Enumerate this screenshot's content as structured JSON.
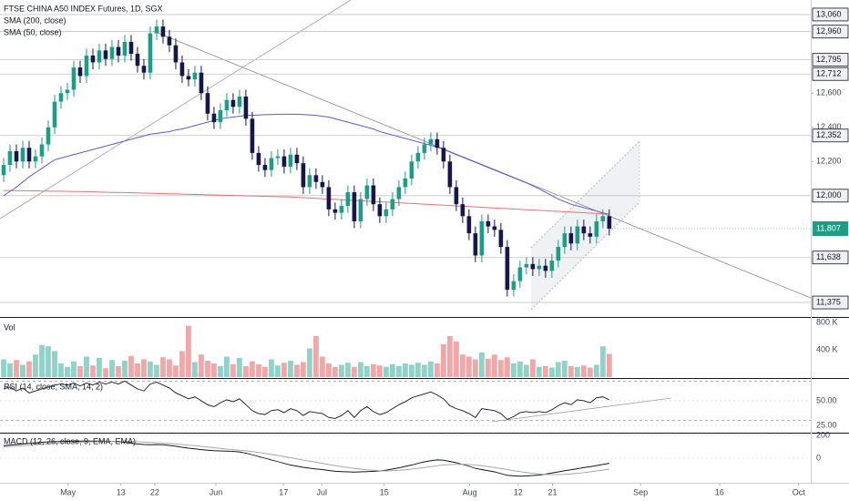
{
  "chart_data": {
    "type": "candlestick",
    "title": "FTSE CHINA A50 INDEX Futures, 1D, SGX",
    "up_color": "#1b9e83",
    "down_color": "#16164a",
    "xlim": [
      -0.57,
      126.6
    ],
    "xticks": [
      {
        "value": 10.1,
        "label": "May"
      },
      {
        "value": 18.4,
        "label": "13"
      },
      {
        "value": 23.7,
        "label": "22"
      },
      {
        "value": 33.3,
        "label": "Jun"
      },
      {
        "value": 43.9,
        "label": "17"
      },
      {
        "value": 49.9,
        "label": "Jul"
      },
      {
        "value": 59.7,
        "label": "15"
      },
      {
        "value": 73.1,
        "label": "Aug"
      },
      {
        "value": 80.7,
        "label": "12"
      },
      {
        "value": 86.1,
        "label": "21"
      },
      {
        "value": 99.9,
        "label": "Sep"
      },
      {
        "value": 112.3,
        "label": "16"
      },
      {
        "value": 124.7,
        "label": "Oct"
      }
    ],
    "ylim": [
      11290,
      13145
    ],
    "yticks": [
      {
        "value": 12600,
        "label": "12,600"
      },
      {
        "value": 12400,
        "label": "12,400"
      },
      {
        "value": 12200,
        "label": "12,200"
      }
    ],
    "levels": [
      {
        "value": 13060,
        "label": "13,060"
      },
      {
        "value": 12960,
        "label": "12,960"
      },
      {
        "value": 12795,
        "label": "12,795"
      },
      {
        "value": 12712,
        "label": "12,712"
      },
      {
        "value": 12352,
        "label": "12,352"
      },
      {
        "value": 12000,
        "label": "12,000"
      },
      {
        "value": 11638,
        "label": "11,638"
      },
      {
        "value": 11375,
        "label": "11,375"
      }
    ],
    "last_price": {
      "value": 11807,
      "label": "11,807"
    },
    "open": [
      12120,
      12180,
      12260,
      12200,
      12280,
      12200,
      12230,
      12300,
      12400,
      12550,
      12600,
      12620,
      12750,
      12700,
      12820,
      12780,
      12850,
      12800,
      12870,
      12820,
      12900,
      12830,
      12760,
      12720,
      12950,
      12990,
      12930,
      12880,
      12780,
      12700,
      12680,
      12720,
      12600,
      12480,
      12430,
      12500,
      12560,
      12520,
      12580,
      12450,
      12250,
      12180,
      12150,
      12220,
      12230,
      12170,
      12240,
      12190,
      12050,
      12120,
      12080,
      12050,
      11920,
      11900,
      11940,
      12020,
      11850,
      11980,
      12060,
      11950,
      11880,
      11920,
      11980,
      12050,
      12100,
      12200,
      12250,
      12300,
      12330,
      12280,
      12200,
      12050,
      11950,
      11880,
      11780,
      11650,
      11850,
      11820,
      11800,
      11700,
      11450,
      11500,
      11580,
      11600,
      11570,
      11590,
      11560,
      11620,
      11700,
      11780,
      11720,
      11820,
      11780,
      11760,
      11850,
      11880
    ],
    "high": [
      12220,
      12300,
      12300,
      12320,
      12320,
      12270,
      12340,
      12440,
      12590,
      12640,
      12660,
      12790,
      12790,
      12860,
      12860,
      12890,
      12890,
      12910,
      12910,
      12940,
      12940,
      12870,
      12800,
      12990,
      13030,
      13030,
      12970,
      12920,
      12820,
      12740,
      12760,
      12760,
      12640,
      12520,
      12540,
      12600,
      12600,
      12620,
      12620,
      12490,
      12290,
      12220,
      12260,
      12270,
      12270,
      12280,
      12280,
      12230,
      12160,
      12160,
      12120,
      12090,
      11960,
      11980,
      12060,
      12060,
      12020,
      12100,
      12100,
      11990,
      11960,
      12020,
      12090,
      12140,
      12240,
      12290,
      12340,
      12370,
      12370,
      12320,
      12240,
      12090,
      11990,
      11920,
      11820,
      11890,
      11890,
      11860,
      11840,
      11740,
      11540,
      11620,
      11640,
      11640,
      11630,
      11630,
      11660,
      11740,
      11820,
      11820,
      11860,
      11860,
      11820,
      11890,
      11920,
      11920
    ],
    "low": [
      12080,
      12140,
      12160,
      12160,
      12160,
      12160,
      12190,
      12260,
      12360,
      12510,
      12560,
      12580,
      12660,
      12660,
      12740,
      12740,
      12760,
      12760,
      12780,
      12780,
      12790,
      12720,
      12680,
      12680,
      12910,
      12890,
      12840,
      12740,
      12660,
      12640,
      12640,
      12560,
      12440,
      12390,
      12390,
      12460,
      12480,
      12480,
      12410,
      12210,
      12140,
      12110,
      12110,
      12180,
      12130,
      12130,
      12150,
      12010,
      12010,
      12040,
      12010,
      11880,
      11860,
      11860,
      11900,
      11810,
      11810,
      11940,
      11910,
      11840,
      11840,
      11880,
      11940,
      12010,
      12060,
      12160,
      12210,
      12260,
      12240,
      12160,
      12010,
      11910,
      11840,
      11740,
      11610,
      11610,
      11780,
      11760,
      11660,
      11410,
      11410,
      11460,
      11540,
      11530,
      11530,
      11520,
      11520,
      11580,
      11660,
      11680,
      11680,
      11740,
      11720,
      11720,
      11810,
      11767
    ],
    "close": [
      12180,
      12260,
      12200,
      12280,
      12200,
      12230,
      12300,
      12400,
      12550,
      12600,
      12620,
      12750,
      12700,
      12820,
      12780,
      12850,
      12800,
      12870,
      12820,
      12900,
      12830,
      12760,
      12720,
      12950,
      12990,
      12930,
      12880,
      12780,
      12700,
      12680,
      12720,
      12600,
      12480,
      12430,
      12500,
      12560,
      12520,
      12580,
      12450,
      12250,
      12180,
      12150,
      12220,
      12230,
      12170,
      12240,
      12190,
      12050,
      12120,
      12080,
      12050,
      11920,
      11900,
      11940,
      12020,
      11850,
      11980,
      12060,
      11950,
      11880,
      11920,
      11980,
      12050,
      12100,
      12200,
      12250,
      12300,
      12330,
      12280,
      12200,
      12050,
      11950,
      11880,
      11780,
      11650,
      11850,
      11820,
      11800,
      11700,
      11450,
      11500,
      11580,
      11600,
      11570,
      11590,
      11560,
      11620,
      11700,
      11780,
      11720,
      11820,
      11780,
      11760,
      11850,
      11880,
      11807
    ],
    "overlays": [
      {
        "name": "SMA (200, close)",
        "color": "#e57373",
        "values": [
          12030,
          12030,
          12029,
          12029,
          12028,
          12028,
          12027,
          12027,
          12026,
          12026,
          12025,
          12024,
          12024,
          12023,
          12022,
          12021,
          12020,
          12019,
          12019,
          12018,
          12017,
          12016,
          12015,
          12014,
          12013,
          12012,
          12011,
          12010,
          12009,
          12008,
          12007,
          12006,
          12005,
          12004,
          12003,
          12002,
          12001,
          12000,
          11999,
          11998,
          11997,
          11996,
          11995,
          11994,
          11993,
          11992,
          11990,
          11988,
          11986,
          11984,
          11982,
          11980,
          11978,
          11976,
          11974,
          11972,
          11970,
          11968,
          11966,
          11964,
          11962,
          11960,
          11958,
          11956,
          11954,
          11952,
          11950,
          11948,
          11946,
          11944,
          11942,
          11940,
          11938,
          11936,
          11934,
          11932,
          11930,
          11928,
          11926,
          11924,
          11922,
          11920,
          11918,
          11916,
          11914,
          11912,
          11910,
          11908,
          11906,
          11904,
          11902,
          11900,
          11898,
          11896,
          11894,
          11892
        ]
      },
      {
        "name": "SMA (50, close)",
        "color": "#5c5fc8",
        "values": [
          12000,
          12025,
          12050,
          12080,
          12110,
          12135,
          12160,
          12185,
          12210,
          12220,
          12230,
          12240,
          12250,
          12260,
          12270,
          12280,
          12290,
          12300,
          12310,
          12320,
          12330,
          12340,
          12350,
          12360,
          12365,
          12370,
          12375,
          12385,
          12390,
          12400,
          12410,
          12420,
          12430,
          12440,
          12450,
          12455,
          12460,
          12465,
          12470,
          12470,
          12472,
          12474,
          12475,
          12476,
          12477,
          12477,
          12476,
          12475,
          12473,
          12470,
          12465,
          12460,
          12450,
          12440,
          12430,
          12420,
          12410,
          12400,
          12390,
          12375,
          12365,
          12355,
          12345,
          12335,
          12325,
          12315,
          12305,
          12295,
          12285,
          12270,
          12255,
          12240,
          12225,
          12210,
          12195,
          12180,
          12165,
          12150,
          12135,
          12120,
          12105,
          12090,
          12075,
          12058,
          12040,
          12020,
          12000,
          11980,
          11965,
          11950,
          11940,
          11930,
          11920,
          11910,
          11900,
          11890
        ]
      }
    ],
    "volume": {
      "title": "Vol",
      "up_color": "#8fd3c8",
      "down_color": "#f4a6a6",
      "ylim": [
        0,
        853000
      ],
      "yticks": [
        {
          "value": 800000,
          "label": "800 K"
        },
        {
          "value": 400000,
          "label": "400 K"
        }
      ],
      "values": [
        260000,
        200000,
        250000,
        180000,
        230000,
        330000,
        470000,
        450000,
        380000,
        200000,
        150000,
        230000,
        160000,
        300000,
        170000,
        280000,
        130000,
        250000,
        160000,
        240000,
        310000,
        200000,
        260000,
        230000,
        180000,
        290000,
        260000,
        170000,
        380000,
        750000,
        220000,
        330000,
        240000,
        200000,
        160000,
        300000,
        190000,
        280000,
        160000,
        230000,
        190000,
        150000,
        260000,
        170000,
        210000,
        240000,
        180000,
        220000,
        420000,
        600000,
        300000,
        200000,
        150000,
        180000,
        210000,
        150000,
        220000,
        160000,
        190000,
        170000,
        150000,
        190000,
        160000,
        200000,
        180000,
        210000,
        180000,
        230000,
        200000,
        480000,
        600000,
        520000,
        330000,
        300000,
        260000,
        360000,
        270000,
        330000,
        250000,
        290000,
        200000,
        230000,
        180000,
        260000,
        150000,
        160000,
        140000,
        220000,
        240000,
        160000,
        150000,
        170000,
        140000,
        180000,
        450000,
        340000
      ]
    },
    "rsi": {
      "title": "RSI (14, close, SMA, 14, 2)",
      "color": "#131722",
      "ylim": [
        17.6,
        73.1
      ],
      "yticks": [
        {
          "value": 50,
          "label": "50.00"
        },
        {
          "value": 25,
          "label": "25.00"
        }
      ],
      "bands": [
        70,
        30
      ],
      "values": [
        62,
        64,
        60,
        63,
        58,
        60,
        62,
        64,
        66,
        67,
        66,
        68,
        65,
        68,
        66,
        69,
        67,
        69,
        67,
        70,
        66,
        62,
        60,
        67,
        69,
        66,
        63,
        58,
        55,
        52,
        54,
        50,
        46,
        44,
        48,
        51,
        49,
        52,
        46,
        40,
        37,
        36,
        40,
        41,
        38,
        42,
        40,
        35,
        39,
        38,
        37,
        33,
        32,
        35,
        40,
        33,
        40,
        44,
        39,
        36,
        38,
        42,
        46,
        49,
        53,
        55,
        57,
        59,
        56,
        52,
        45,
        42,
        40,
        37,
        33,
        42,
        41,
        40,
        37,
        31,
        34,
        38,
        39,
        38,
        39,
        38,
        41,
        45,
        48,
        46,
        51,
        50,
        48,
        53,
        54,
        51
      ]
    },
    "macd": {
      "title": "MACD (12, 26, close, 9, EMA, EMA)",
      "ylim": [
        -216,
        216
      ],
      "yticks": [
        200,
        0
      ],
      "series": [
        {
          "color": "#131722",
          "values": [
            110,
            115,
            120,
            125,
            130,
            135,
            140,
            143,
            145,
            147,
            148,
            150,
            150,
            151,
            150,
            150,
            149,
            148,
            146,
            140,
            132,
            125,
            120,
            118,
            120,
            118,
            112,
            105,
            96,
            88,
            82,
            75,
            70,
            66,
            64,
            62,
            60,
            55,
            45,
            30,
            15,
            0,
            -15,
            -30,
            -45,
            -60,
            -70,
            -80,
            -88,
            -95,
            -100,
            -108,
            -115,
            -118,
            -120,
            -122,
            -120,
            -118,
            -115,
            -112,
            -105,
            -95,
            -85,
            -72,
            -60,
            -45,
            -32,
            -22,
            -15,
            -18,
            -28,
            -40,
            -55,
            -70,
            -90,
            -100,
            -110,
            -120,
            -135,
            -150,
            -155,
            -158,
            -156,
            -152,
            -148,
            -140,
            -130,
            -120,
            -110,
            -102,
            -92,
            -82,
            -75,
            -65,
            -55,
            -45
          ]
        },
        {
          "color": "#a8a8a8",
          "values": [
            100,
            103,
            106,
            110,
            114,
            118,
            122,
            126,
            130,
            133,
            136,
            138,
            140,
            142,
            144,
            145,
            146,
            147,
            147,
            147,
            146,
            144,
            141,
            138,
            135,
            132,
            129,
            125,
            120,
            115,
            110,
            104,
            98,
            92,
            86,
            80,
            75,
            70,
            65,
            58,
            50,
            42,
            33,
            24,
            14,
            4,
            -6,
            -16,
            -26,
            -36,
            -46,
            -56,
            -65,
            -74,
            -82,
            -90,
            -96,
            -102,
            -106,
            -110,
            -112,
            -110,
            -107,
            -102,
            -96,
            -89,
            -82,
            -74,
            -66,
            -60,
            -56,
            -54,
            -54,
            -56,
            -60,
            -66,
            -74,
            -82,
            -90,
            -100,
            -110,
            -118,
            -126,
            -132,
            -138,
            -142,
            -144,
            -144,
            -142,
            -138,
            -133,
            -127,
            -120,
            -112,
            -104,
            -96
          ]
        }
      ]
    }
  }
}
